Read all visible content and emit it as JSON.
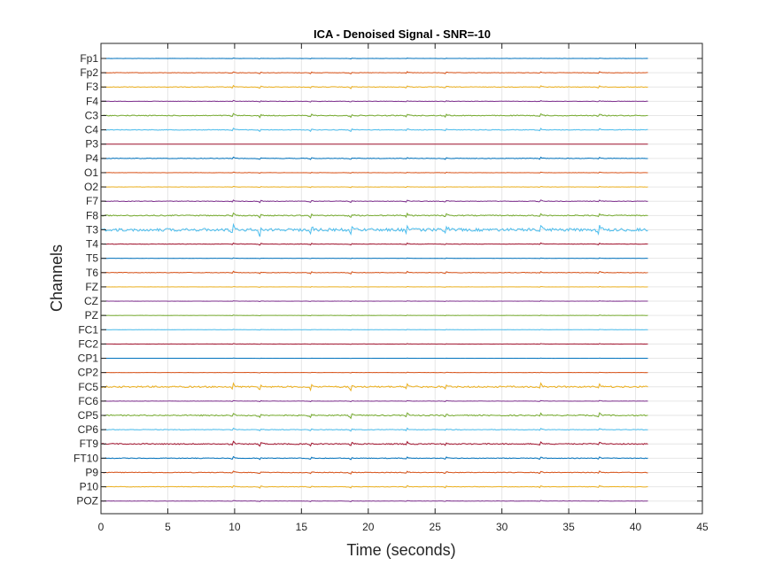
{
  "chart_data": {
    "type": "line",
    "title": "ICA - Denoised Signal - SNR=-10",
    "xlabel": "Time (seconds)",
    "ylabel": "Channels",
    "xlim": [
      0,
      45
    ],
    "xticks": [
      0,
      5,
      10,
      15,
      20,
      25,
      30,
      35,
      40,
      45
    ],
    "signal_end_seconds": 41,
    "grid": true,
    "channels": [
      "Fp1",
      "Fp2",
      "F3",
      "F4",
      "C3",
      "C4",
      "P3",
      "P4",
      "O1",
      "O2",
      "F7",
      "F8",
      "T3",
      "T4",
      "T5",
      "T6",
      "FZ",
      "CZ",
      "PZ",
      "FC1",
      "FC2",
      "CP1",
      "CP2",
      "FC5",
      "FC6",
      "CP5",
      "CP6",
      "FT9",
      "FT10",
      "P9",
      "P10",
      "POZ"
    ],
    "series_colors": [
      "#0072BD",
      "#D95319",
      "#EDB120",
      "#7E2F8E",
      "#77AC30",
      "#4DBEEE",
      "#A2142F"
    ],
    "spike_times": [
      9.9,
      11.9,
      15.7,
      18.7,
      22.9,
      25.8,
      32.9,
      37.3
    ],
    "series_amplitude": [
      0.1,
      0.25,
      0.35,
      0.2,
      0.45,
      0.35,
      0.0,
      0.3,
      0.15,
      0.15,
      0.3,
      0.55,
      1.5,
      0.25,
      0.1,
      0.3,
      0.1,
      0.1,
      0.1,
      0.1,
      0.1,
      0.05,
      0.1,
      0.8,
      0.15,
      0.6,
      0.35,
      0.55,
      0.35,
      0.35,
      0.3,
      0.15
    ]
  }
}
